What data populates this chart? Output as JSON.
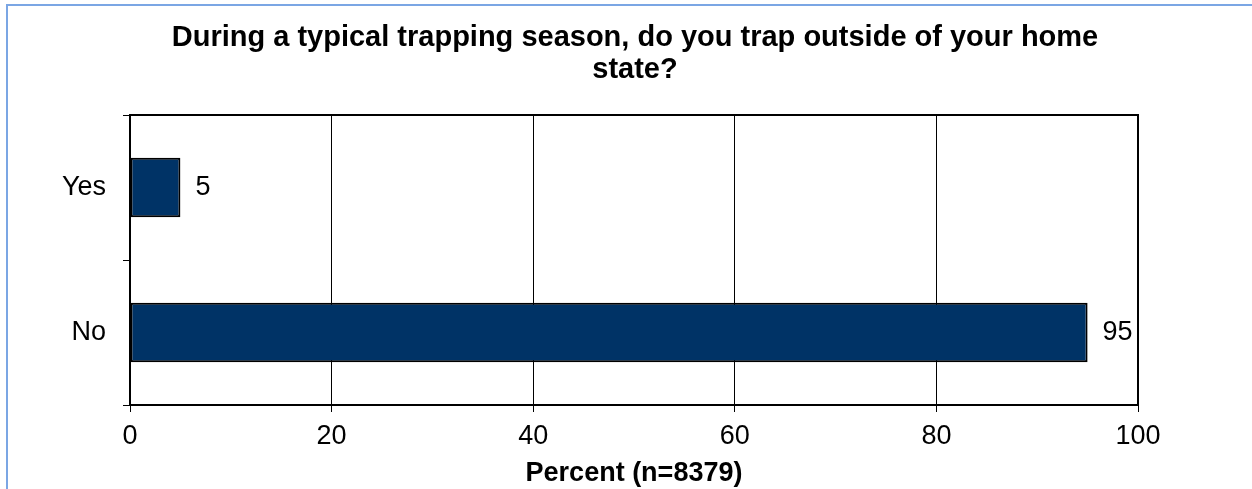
{
  "chart_data": {
    "type": "bar",
    "orientation": "horizontal",
    "title": "During a typical trapping season, do you trap outside of your home state?",
    "xlabel": "Percent (n=8379)",
    "categories": [
      "Yes",
      "No"
    ],
    "values": [
      5,
      95
    ],
    "color": "#003366",
    "xlim": [
      0,
      100
    ],
    "xticks": [
      0,
      20,
      40,
      60,
      80,
      100
    ],
    "grid": "x",
    "data_labels": true
  }
}
